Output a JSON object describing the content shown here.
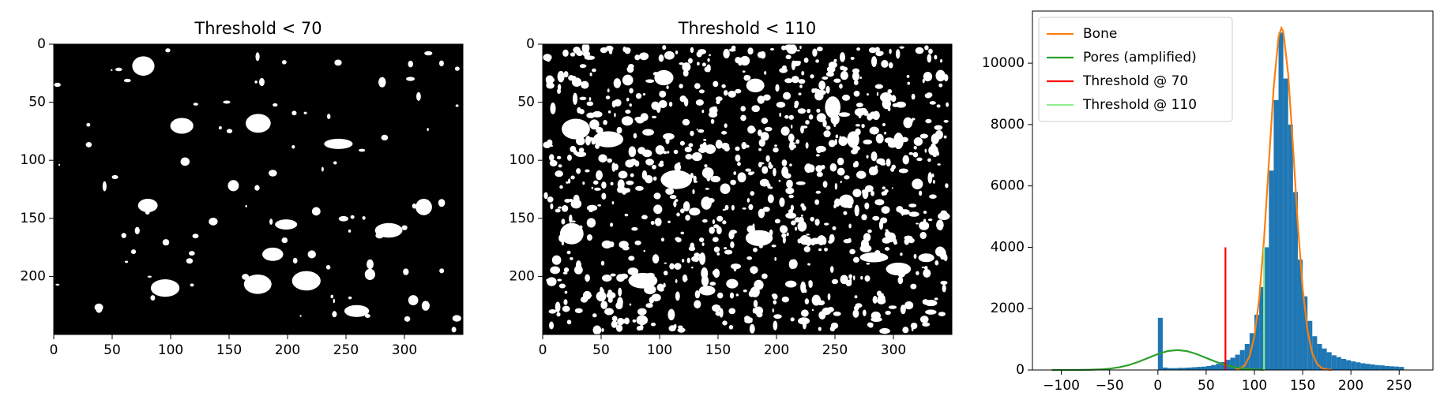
{
  "chart_data": [
    {
      "type": "image",
      "title": "Threshold < 70",
      "xlim": [
        0,
        350
      ],
      "ylim": [
        250,
        0
      ],
      "xticks": [
        0,
        50,
        100,
        150,
        200,
        250,
        300
      ],
      "yticks": [
        0,
        50,
        100,
        150,
        200
      ]
    },
    {
      "type": "image",
      "title": "Threshold < 110",
      "xlim": [
        0,
        350
      ],
      "ylim": [
        250,
        0
      ],
      "xticks": [
        0,
        50,
        100,
        150,
        200,
        250,
        300
      ],
      "yticks": [
        0,
        50,
        100,
        150,
        200
      ]
    },
    {
      "type": "histogram",
      "color": "#1f77b4",
      "bins": [
        0,
        5,
        10,
        15,
        20,
        25,
        30,
        35,
        40,
        45,
        50,
        55,
        60,
        65,
        70,
        75,
        80,
        85,
        90,
        95,
        100,
        105,
        110,
        115,
        120,
        125,
        130,
        135,
        140,
        145,
        150,
        155,
        160,
        165,
        170,
        175,
        180,
        185,
        190,
        195,
        200,
        205,
        210,
        215,
        220,
        225,
        230,
        235,
        240,
        245,
        250,
        255
      ],
      "values": [
        1700,
        80,
        60,
        60,
        70,
        70,
        80,
        90,
        100,
        110,
        130,
        160,
        200,
        260,
        330,
        400,
        500,
        650,
        850,
        1200,
        1800,
        2700,
        4000,
        6500,
        8800,
        11000,
        9500,
        8000,
        5800,
        3600,
        2400,
        1600,
        1100,
        850,
        700,
        580,
        480,
        420,
        360,
        320,
        280,
        250,
        220,
        200,
        180,
        160,
        150,
        130,
        120,
        110,
        100
      ],
      "series": [
        {
          "name": "Bone",
          "color": "#ff7f0e",
          "x": [
            80,
            85,
            90,
            95,
            100,
            105,
            110,
            115,
            120,
            125,
            128,
            130,
            135,
            140,
            145,
            150,
            155,
            160,
            165,
            170,
            175,
            180
          ],
          "values": [
            12,
            47,
            155,
            446,
            1095,
            2330,
            4270,
            6765,
            9220,
            10860,
            11150,
            11020,
            9645,
            7280,
            4740,
            2665,
            1290,
            540,
            194,
            60,
            16,
            3
          ]
        },
        {
          "name": "Pores (amplified)",
          "color": "#2ca02c",
          "x": [
            -110,
            -100,
            -90,
            -80,
            -70,
            -60,
            -50,
            -40,
            -30,
            -20,
            -10,
            0,
            10,
            20,
            30,
            40,
            50,
            60,
            70,
            80,
            90,
            100,
            110
          ],
          "values": [
            0,
            0.2,
            0.8,
            2.5,
            7.2,
            18.4,
            42.8,
            88,
            162,
            267,
            394,
            521,
            615,
            650,
            615,
            521,
            394,
            267,
            162,
            88,
            43,
            18,
            7
          ]
        },
        {
          "name": "Threshold @ 70",
          "color": "#ff0000",
          "x": [
            70,
            70
          ],
          "values": [
            0,
            4000
          ]
        },
        {
          "name": "Threshold @ 110",
          "color": "#90ee90",
          "x": [
            110,
            110
          ],
          "values": [
            0,
            4000
          ]
        }
      ],
      "xlim": [
        -130,
        285
      ],
      "ylim": [
        0,
        11700
      ],
      "xticks": [
        {
          "value": -100,
          "label": "−100"
        },
        {
          "value": -50,
          "label": "−50"
        },
        0,
        50,
        100,
        150,
        200,
        250
      ],
      "yticks": [
        0,
        2000,
        4000,
        6000,
        8000,
        10000
      ],
      "legend": "upper left"
    }
  ]
}
